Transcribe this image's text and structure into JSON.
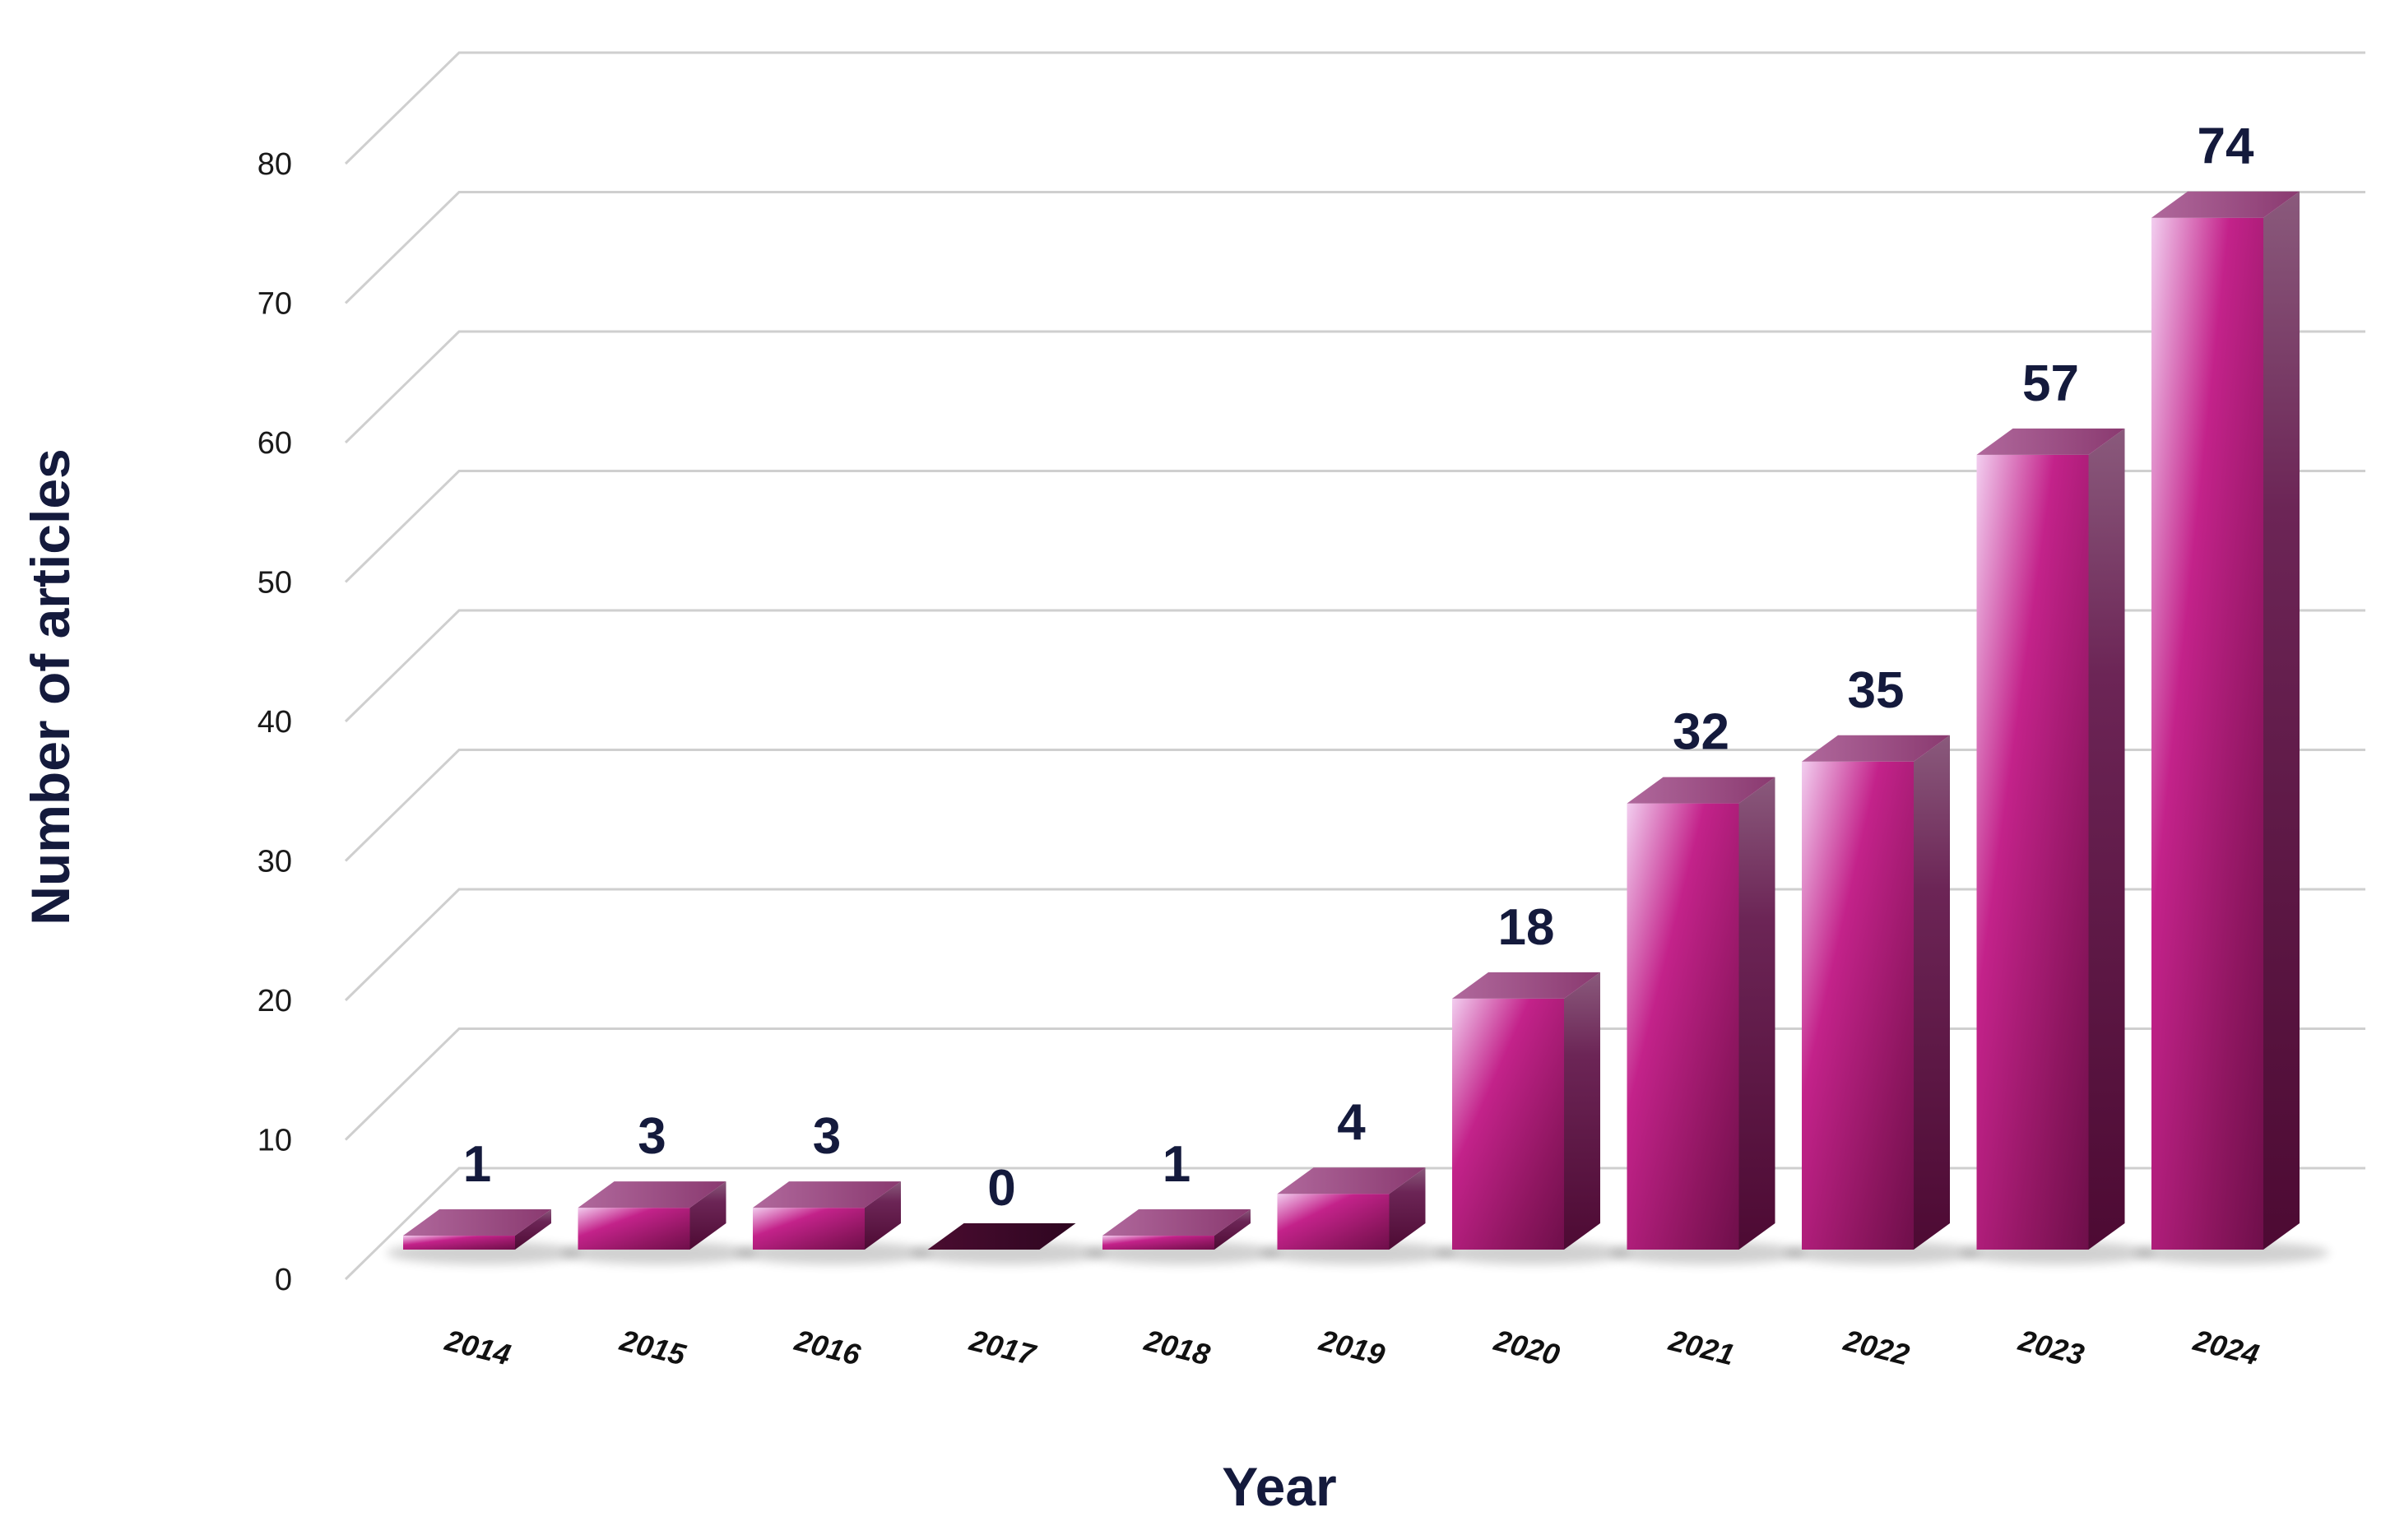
{
  "chart_data": {
    "type": "bar",
    "style": "3d-column",
    "categories": [
      "2014",
      "2015",
      "2016",
      "2017",
      "2018",
      "2019",
      "2020",
      "2021",
      "2022",
      "2023",
      "2024"
    ],
    "values": [
      1,
      3,
      3,
      0,
      1,
      4,
      18,
      32,
      35,
      57,
      74
    ],
    "data_labels": [
      "1",
      "3",
      "3",
      "0",
      "1",
      "4",
      "18",
      "32",
      "35",
      "57",
      "74"
    ],
    "title": "",
    "xlabel": "Year",
    "ylabel": "Number of articles",
    "ylim": [
      0,
      80
    ],
    "yticks": [
      "0",
      "10",
      "20",
      "30",
      "40",
      "50",
      "60",
      "70",
      "80"
    ],
    "grid": true,
    "legend": "none",
    "colors": {
      "bar_front_light": "#e8b4e0",
      "bar_front_mid": "#c0207e",
      "bar_front_dark": "#7a1250",
      "bar_side": "#5a0c3a",
      "bar_top": "#9a4a7e",
      "label_text": "#141a3c",
      "grid": "#cfcfcf"
    }
  }
}
